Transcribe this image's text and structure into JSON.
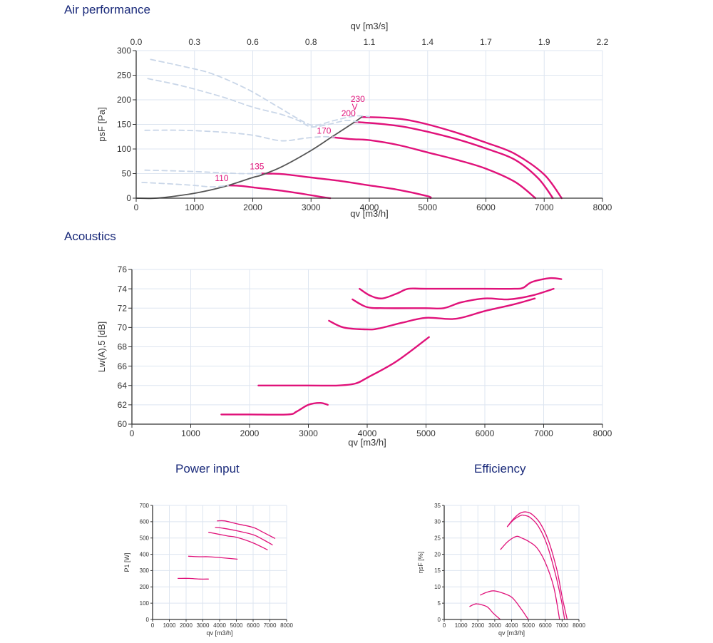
{
  "sections": {
    "air_performance": "Air performance",
    "acoustics": "Acoustics",
    "power_input": "Power input",
    "efficiency": "Efficiency"
  },
  "colors": {
    "curve": "#e0127a",
    "system_line": "#555555",
    "dashed": "#c9d6e8",
    "grid": "#dde5f0",
    "axis": "#333333",
    "title": "#1a2a7a"
  },
  "chart_data": [
    {
      "id": "air",
      "type": "line",
      "title": "Air performance",
      "xlabel": "qv [m3/h]",
      "ylabel": "psF [Pa]",
      "x2label": "qv [m3/s]",
      "xlim": [
        0,
        8000
      ],
      "ylim": [
        0,
        300
      ],
      "xticks": [
        0,
        1000,
        2000,
        3000,
        4000,
        5000,
        6000,
        7000,
        8000
      ],
      "yticks": [
        0,
        50,
        100,
        150,
        200,
        250,
        300
      ],
      "x2ticks": [
        "0.0",
        "0.3",
        "0.6",
        "0.8",
        "1.1",
        "1.4",
        "1.7",
        "1.9",
        "2.2"
      ],
      "grid": true,
      "series": [
        {
          "name": "230",
          "style": "solid",
          "points": [
            [
              3870,
              165
            ],
            [
              4200,
              164
            ],
            [
              4600,
              160
            ],
            [
              5000,
              150
            ],
            [
              5500,
              133
            ],
            [
              6000,
              113
            ],
            [
              6500,
              90
            ],
            [
              7000,
              48
            ],
            [
              7300,
              0
            ]
          ]
        },
        {
          "name": "200",
          "style": "solid",
          "points": [
            [
              3750,
              155
            ],
            [
              4200,
              151
            ],
            [
              4600,
              145
            ],
            [
              5000,
              135
            ],
            [
              5500,
              120
            ],
            [
              6000,
              101
            ],
            [
              6500,
              78
            ],
            [
              6900,
              40
            ],
            [
              7150,
              0
            ]
          ]
        },
        {
          "name": "170",
          "style": "solid",
          "points": [
            [
              3350,
              124
            ],
            [
              3700,
              120
            ],
            [
              4000,
              118
            ],
            [
              4500,
              108
            ],
            [
              5000,
              93
            ],
            [
              5500,
              78
            ],
            [
              6000,
              60
            ],
            [
              6500,
              33
            ],
            [
              6850,
              0
            ]
          ]
        },
        {
          "name": "135",
          "style": "solid",
          "points": [
            [
              2150,
              50
            ],
            [
              2500,
              49
            ],
            [
              3000,
              42
            ],
            [
              3500,
              35
            ],
            [
              4000,
              26
            ],
            [
              4500,
              17
            ],
            [
              5000,
              4
            ],
            [
              5050,
              0
            ]
          ]
        },
        {
          "name": "110",
          "style": "solid",
          "points": [
            [
              1580,
              26
            ],
            [
              1800,
              25
            ],
            [
              2000,
              22
            ],
            [
              2500,
              15
            ],
            [
              2900,
              8
            ],
            [
              3200,
              2
            ],
            [
              3330,
              0
            ]
          ]
        },
        {
          "name": "system",
          "style": "solid-gray",
          "points": [
            [
              0,
              0
            ],
            [
              350,
              0
            ],
            [
              900,
              8
            ],
            [
              1250,
              16
            ],
            [
              1580,
              26
            ],
            [
              2000,
              42
            ],
            [
              2150,
              47
            ],
            [
              2500,
              64
            ],
            [
              3000,
              97
            ],
            [
              3350,
              124
            ],
            [
              3750,
              155
            ],
            [
              3870,
              165
            ]
          ]
        },
        {
          "name": "dashed-1",
          "style": "dashed",
          "points": [
            [
              250,
              282
            ],
            [
              800,
              268
            ],
            [
              1300,
              253
            ],
            [
              1900,
              222
            ],
            [
              2400,
              188
            ],
            [
              2800,
              160
            ],
            [
              3050,
              148
            ],
            [
              3400,
              158
            ],
            [
              3750,
              167
            ],
            [
              4000,
              166
            ]
          ]
        },
        {
          "name": "dashed-2",
          "style": "dashed",
          "points": [
            [
              200,
              243
            ],
            [
              800,
              228
            ],
            [
              1500,
              205
            ],
            [
              2000,
              185
            ],
            [
              2500,
              170
            ],
            [
              2800,
              157
            ],
            [
              3000,
              145
            ],
            [
              3300,
              150
            ],
            [
              3600,
              158
            ],
            [
              3800,
              155
            ]
          ]
        },
        {
          "name": "dashed-3",
          "style": "dashed",
          "points": [
            [
              150,
              138
            ],
            [
              800,
              138
            ],
            [
              1500,
              134
            ],
            [
              2000,
              128
            ],
            [
              2400,
              118
            ],
            [
              2600,
              117
            ],
            [
              2900,
              122
            ],
            [
              3200,
              125
            ],
            [
              3400,
              124
            ]
          ]
        },
        {
          "name": "dashed-4",
          "style": "dashed",
          "points": [
            [
              150,
              57
            ],
            [
              800,
              55
            ],
            [
              1400,
              52
            ],
            [
              1800,
              50
            ],
            [
              2150,
              50
            ]
          ]
        },
        {
          "name": "dashed-5",
          "style": "dashed",
          "points": [
            [
              100,
              32
            ],
            [
              600,
              29
            ],
            [
              1000,
              26
            ],
            [
              1300,
              23
            ],
            [
              1580,
              26
            ]
          ]
        }
      ],
      "annotations": [
        {
          "text": "230",
          "x": 3680,
          "y": 196
        },
        {
          "text": "V",
          "x": 3700,
          "y": 180
        },
        {
          "text": "200",
          "x": 3520,
          "y": 167
        },
        {
          "text": "170",
          "x": 3100,
          "y": 131
        },
        {
          "text": "135",
          "x": 1950,
          "y": 59
        },
        {
          "text": "110",
          "x": 1350,
          "y": 35
        }
      ]
    },
    {
      "id": "acoustics",
      "type": "line",
      "title": "Acoustics",
      "xlabel": "qv [m3/h]",
      "ylabel": "Lw(A),5 [dB]",
      "xlim": [
        0,
        8000
      ],
      "ylim": [
        60,
        76
      ],
      "xticks": [
        0,
        1000,
        2000,
        3000,
        4000,
        5000,
        6000,
        7000,
        8000
      ],
      "yticks": [
        60,
        62,
        64,
        66,
        68,
        70,
        72,
        74,
        76
      ],
      "grid": true,
      "series": [
        {
          "name": "230",
          "points": [
            [
              3870,
              74
            ],
            [
              4050,
              73.3
            ],
            [
              4250,
              73
            ],
            [
              4500,
              73.5
            ],
            [
              4700,
              74
            ],
            [
              5000,
              74
            ],
            [
              6000,
              74
            ],
            [
              6500,
              74
            ],
            [
              6650,
              74.1
            ],
            [
              6800,
              74.7
            ],
            [
              7100,
              75.1
            ],
            [
              7300,
              75
            ]
          ]
        },
        {
          "name": "200",
          "points": [
            [
              3750,
              72.9
            ],
            [
              4000,
              72.1
            ],
            [
              4300,
              72
            ],
            [
              5000,
              72
            ],
            [
              5300,
              72
            ],
            [
              5600,
              72.6
            ],
            [
              6000,
              73
            ],
            [
              6400,
              72.9
            ],
            [
              6800,
              73.3
            ],
            [
              7170,
              74
            ]
          ]
        },
        {
          "name": "170",
          "points": [
            [
              3350,
              70.7
            ],
            [
              3600,
              70
            ],
            [
              4000,
              69.8
            ],
            [
              4200,
              69.9
            ],
            [
              4600,
              70.5
            ],
            [
              5000,
              71
            ],
            [
              5500,
              70.9
            ],
            [
              6000,
              71.7
            ],
            [
              6500,
              72.4
            ],
            [
              6850,
              73
            ]
          ]
        },
        {
          "name": "135",
          "points": [
            [
              2150,
              64
            ],
            [
              3000,
              64
            ],
            [
              3500,
              64
            ],
            [
              3800,
              64.2
            ],
            [
              4000,
              64.8
            ],
            [
              4500,
              66.5
            ],
            [
              5050,
              69
            ]
          ]
        },
        {
          "name": "110",
          "points": [
            [
              1520,
              61
            ],
            [
              2000,
              61
            ],
            [
              2650,
              61
            ],
            [
              2800,
              61.3
            ],
            [
              3000,
              62
            ],
            [
              3200,
              62.2
            ],
            [
              3330,
              62
            ]
          ]
        }
      ]
    },
    {
      "id": "power",
      "type": "line",
      "title": "Power input",
      "xlabel": "qv [m3/h]",
      "ylabel": "P1 [W]",
      "xlim": [
        0,
        8000
      ],
      "ylim": [
        0,
        700
      ],
      "xticks": [
        0,
        1000,
        2000,
        3000,
        4000,
        5000,
        6000,
        7000,
        8000
      ],
      "yticks": [
        0,
        100,
        200,
        300,
        400,
        500,
        600,
        700
      ],
      "grid": true,
      "series": [
        {
          "name": "230",
          "points": [
            [
              3870,
              605
            ],
            [
              4300,
              605
            ],
            [
              5000,
              588
            ],
            [
              6000,
              565
            ],
            [
              6600,
              535
            ],
            [
              7300,
              498
            ]
          ]
        },
        {
          "name": "200",
          "points": [
            [
              3750,
              565
            ],
            [
              4200,
              560
            ],
            [
              5000,
              545
            ],
            [
              6000,
              520
            ],
            [
              6600,
              490
            ],
            [
              7150,
              458
            ]
          ]
        },
        {
          "name": "170",
          "points": [
            [
              3350,
              535
            ],
            [
              4000,
              522
            ],
            [
              4500,
              512
            ],
            [
              5000,
              505
            ],
            [
              6000,
              470
            ],
            [
              6850,
              428
            ]
          ]
        },
        {
          "name": "135",
          "points": [
            [
              2150,
              388
            ],
            [
              2800,
              385
            ],
            [
              3300,
              385
            ],
            [
              4000,
              380
            ],
            [
              5050,
              370
            ]
          ]
        },
        {
          "name": "110",
          "points": [
            [
              1520,
              252
            ],
            [
              2200,
              252
            ],
            [
              2800,
              248
            ],
            [
              3330,
              248
            ]
          ]
        }
      ]
    },
    {
      "id": "efficiency",
      "type": "line",
      "title": "Efficiency",
      "xlabel": "qv [m3/h]",
      "ylabel": "ηsF [%]",
      "xlim": [
        0,
        8000
      ],
      "ylim": [
        0,
        35
      ],
      "xticks": [
        0,
        1000,
        2000,
        3000,
        4000,
        5000,
        6000,
        7000,
        8000
      ],
      "yticks": [
        0,
        5,
        10,
        15,
        20,
        25,
        30,
        35
      ],
      "grid": true,
      "series": [
        {
          "name": "230",
          "points": [
            [
              3750,
              28.5
            ],
            [
              4100,
              30.8
            ],
            [
              4500,
              32.6
            ],
            [
              4850,
              33
            ],
            [
              5200,
              32.3
            ],
            [
              5700,
              29.5
            ],
            [
              6200,
              24
            ],
            [
              6700,
              15
            ],
            [
              7000,
              7
            ],
            [
              7300,
              0
            ]
          ]
        },
        {
          "name": "200",
          "points": [
            [
              3750,
              28.5
            ],
            [
              4100,
              30.5
            ],
            [
              4500,
              31.8
            ],
            [
              4700,
              32
            ],
            [
              5100,
              31.3
            ],
            [
              5600,
              28.5
            ],
            [
              6100,
              23
            ],
            [
              6600,
              14
            ],
            [
              6950,
              6
            ],
            [
              7150,
              0
            ]
          ]
        },
        {
          "name": "170",
          "points": [
            [
              3350,
              21.5
            ],
            [
              3800,
              24
            ],
            [
              4300,
              25.5
            ],
            [
              4600,
              25
            ],
            [
              5000,
              24
            ],
            [
              5500,
              22
            ],
            [
              6000,
              17.5
            ],
            [
              6500,
              10
            ],
            [
              6850,
              0
            ]
          ]
        },
        {
          "name": "135",
          "points": [
            [
              2150,
              7.5
            ],
            [
              2500,
              8.3
            ],
            [
              2900,
              8.8
            ],
            [
              3300,
              8.4
            ],
            [
              3900,
              7.2
            ],
            [
              4200,
              5.8
            ],
            [
              4600,
              3
            ],
            [
              5000,
              0
            ]
          ]
        },
        {
          "name": "110",
          "points": [
            [
              1520,
              4
            ],
            [
              1750,
              4.6
            ],
            [
              1950,
              4.8
            ],
            [
              2300,
              4.4
            ],
            [
              2600,
              3.7
            ],
            [
              2900,
              2
            ],
            [
              3330,
              0
            ]
          ]
        }
      ]
    }
  ]
}
